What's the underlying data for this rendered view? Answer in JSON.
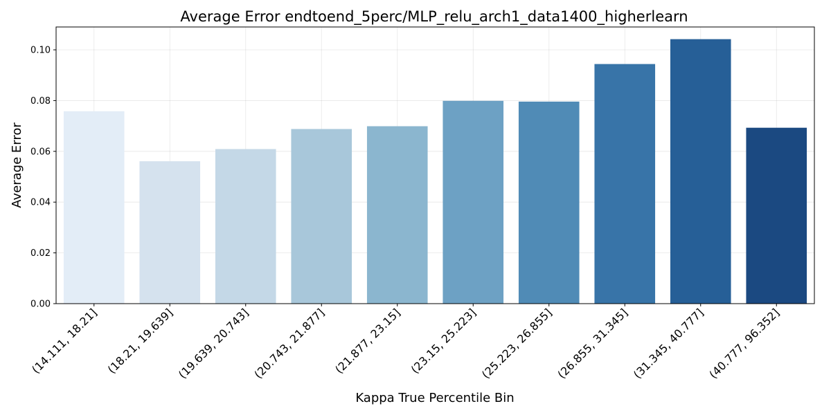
{
  "chart_data": {
    "type": "bar",
    "title": "Average Error endtoend_5perc/MLP_relu_arch1_data1400_higherlearn",
    "xlabel": "Kappa True Percentile Bin",
    "ylabel": "Average Error",
    "categories": [
      "(14.111, 18.21]",
      "(18.21, 19.639]",
      "(19.639, 20.743]",
      "(20.743, 21.877]",
      "(21.877, 23.15]",
      "(23.15, 25.223]",
      "(25.223, 26.855]",
      "(26.855, 31.345]",
      "(31.345, 40.777]",
      "(40.777, 96.352]"
    ],
    "values": [
      0.0758,
      0.0561,
      0.0609,
      0.0688,
      0.0699,
      0.0799,
      0.0796,
      0.0944,
      0.1042,
      0.0693
    ],
    "colors": [
      "#e3edf7",
      "#d5e2ee",
      "#c4d8e7",
      "#a8c7da",
      "#8bb6cf",
      "#6da1c4",
      "#508bb6",
      "#3874a8",
      "#265f97",
      "#1b4981"
    ],
    "ylim": [
      0,
      0.109
    ],
    "yticks": [
      "0.00",
      "0.02",
      "0.04",
      "0.06",
      "0.08",
      "0.10"
    ],
    "grid": true,
    "x_tick_rotation": "45 degrees"
  }
}
